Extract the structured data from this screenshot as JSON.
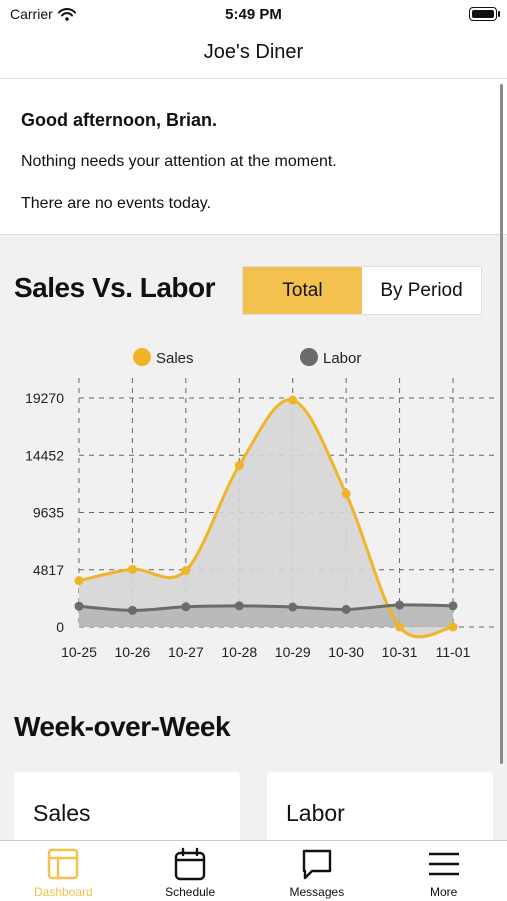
{
  "status": {
    "carrier": "Carrier",
    "time": "5:49 PM"
  },
  "nav": {
    "title": "Joe's Diner"
  },
  "greeting": {
    "title": "Good afternoon, Brian.",
    "attention": "Nothing needs your attention at the moment.",
    "events": "There are no events today."
  },
  "sales_vs_labor": {
    "title": "Sales Vs. Labor",
    "toggle": {
      "options": [
        "Total",
        "By Period"
      ],
      "selected": "Total"
    }
  },
  "chart_data": {
    "type": "area",
    "categories": [
      "10-25",
      "10-26",
      "10-27",
      "10-28",
      "10-29",
      "10-30",
      "10-31",
      "11-01"
    ],
    "series": [
      {
        "name": "Sales",
        "color": "#f0b429",
        "values": [
          3900,
          4850,
          4750,
          13600,
          19100,
          11200,
          0,
          0
        ]
      },
      {
        "name": "Labor",
        "color": "#6b6b6b",
        "values": [
          1750,
          1400,
          1700,
          1780,
          1680,
          1480,
          1850,
          1780
        ]
      }
    ],
    "yticks": [
      0,
      4817,
      9635,
      14452,
      19270
    ],
    "ylim": [
      0,
      19270
    ],
    "legend": "top",
    "grid": true
  },
  "week_over_week": {
    "title": "Week-over-Week",
    "cards": [
      {
        "title": "Sales"
      },
      {
        "title": "Labor"
      }
    ]
  },
  "tabs": [
    {
      "label": "Dashboard",
      "icon": "dashboard-icon",
      "active": true
    },
    {
      "label": "Schedule",
      "icon": "calendar-icon",
      "active": false
    },
    {
      "label": "Messages",
      "icon": "message-icon",
      "active": false
    },
    {
      "label": "More",
      "icon": "menu-icon",
      "active": false
    }
  ],
  "colors": {
    "accent": "#f2c14e",
    "sales": "#f0b429",
    "labor": "#6b6b6b",
    "background": "#f1f1f1"
  }
}
